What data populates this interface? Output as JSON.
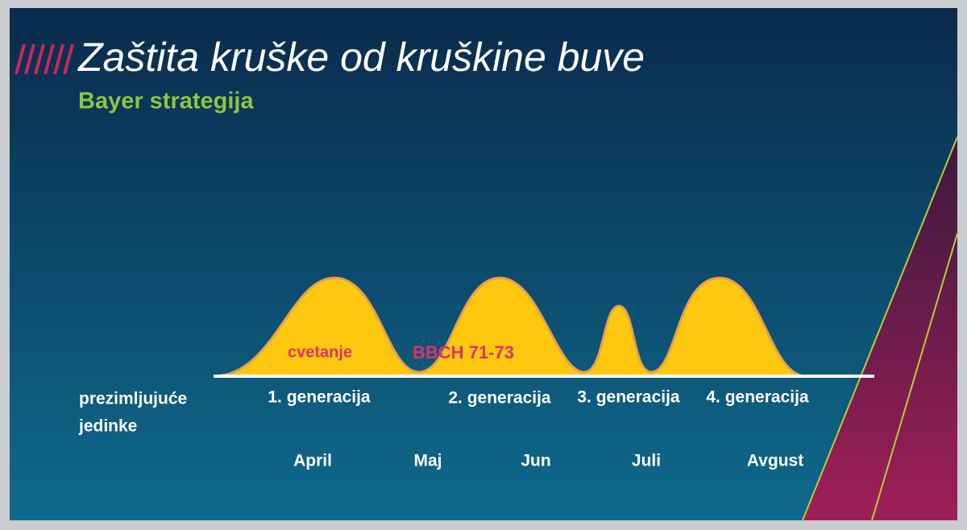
{
  "header": {
    "title": "Zaštita kruške od kruškine buve",
    "subtitle": "Bayer strategija"
  },
  "annotations": [
    "cvetanje",
    "BBCH 71-73"
  ],
  "overwintering": [
    "prezimljujuće",
    "jedinke"
  ],
  "generations": [
    "1. generacija",
    "2. generacija",
    "3. generacija",
    "4. generacija"
  ],
  "months": [
    "April",
    "Maj",
    "Jun",
    "Juli",
    "Avgust"
  ]
}
